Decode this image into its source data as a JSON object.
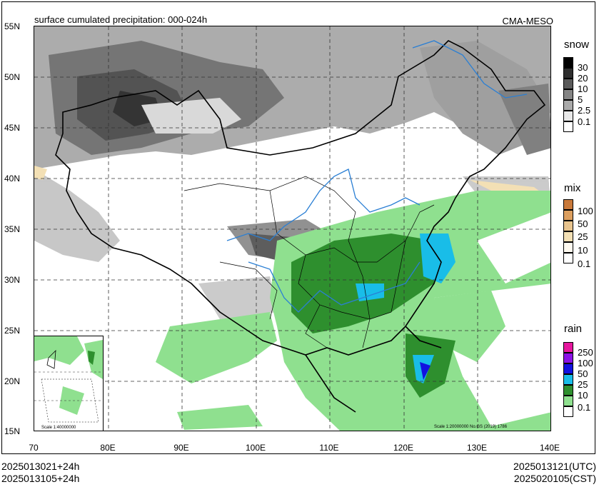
{
  "header": {
    "title": "surface cumulated precipitation: 000-024h",
    "model": "CMA-MESO"
  },
  "axes": {
    "lat_labels": [
      "55N",
      "50N",
      "45N",
      "40N",
      "35N",
      "30N",
      "25N",
      "20N",
      "15N"
    ],
    "lon_labels": [
      "70",
      "80E",
      "90E",
      "100E",
      "110E",
      "120E",
      "130E",
      "140E"
    ]
  },
  "legends": {
    "snow": {
      "title": "snow",
      "levels": [
        "30",
        "20",
        "10",
        "5",
        "2.5",
        "0.1"
      ],
      "colors": [
        "#000000",
        "#2e2e2e",
        "#5a5a5a",
        "#848484",
        "#aaaaaa",
        "#e8e8e8"
      ]
    },
    "mix": {
      "title": "mix",
      "levels": [
        "100",
        "50",
        "25",
        "10",
        "0.1"
      ],
      "colors": [
        "#c9793a",
        "#dc9f5f",
        "#e8c48e",
        "#f3e0b5",
        "#fffaf0"
      ]
    },
    "rain": {
      "title": "rain",
      "levels": [
        "250",
        "100",
        "50",
        "25",
        "10",
        "0.1"
      ],
      "colors": [
        "#e6179e",
        "#8a12e6",
        "#1212e0",
        "#19bde8",
        "#2e8f2e",
        "#8fe08f"
      ]
    }
  },
  "map": {
    "inset_scale": "Scale 1:40000000",
    "main_scale": "Scale 1:20000000 No.GS (2019) 1786"
  },
  "footer": {
    "init_utc": "2025013021+24h",
    "init_cst": "2025013105+24h",
    "valid_utc": "2025013121(UTC)",
    "valid_cst": "2025020105(CST)"
  }
}
